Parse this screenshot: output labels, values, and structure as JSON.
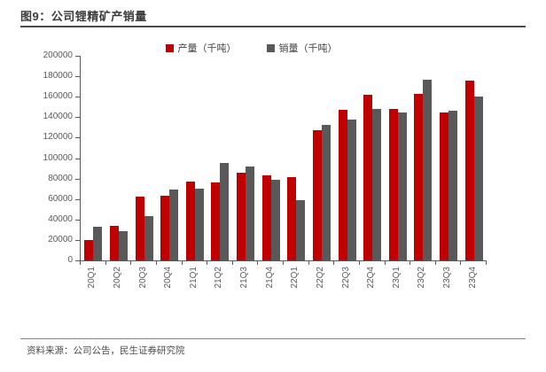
{
  "header": {
    "title": "图9：公司锂精矿产销量"
  },
  "chart_data": {
    "type": "bar",
    "title": "公司锂精矿产销量",
    "categories": [
      "20Q1",
      "20Q2",
      "20Q3",
      "20Q4",
      "21Q1",
      "21Q2",
      "21Q3",
      "21Q4",
      "22Q1",
      "22Q2",
      "22Q3",
      "22Q4",
      "23Q1",
      "23Q2",
      "23Q3",
      "23Q4"
    ],
    "series": [
      {
        "name": "产量（千吨）",
        "color": "#C00000",
        "values": [
          20000,
          34000,
          62500,
          63000,
          77000,
          76500,
          86000,
          83500,
          81500,
          127000,
          147000,
          162000,
          148500,
          162500,
          145000,
          176000
        ]
      },
      {
        "name": "销量（千吨）",
        "color": "#595959",
        "values": [
          33000,
          29000,
          43000,
          69500,
          70500,
          95000,
          91500,
          78500,
          58500,
          132500,
          138000,
          148500,
          145000,
          176500,
          146500,
          160000
        ]
      }
    ],
    "xlabel": "",
    "ylabel": "",
    "ylim": [
      0,
      200000
    ],
    "ytick_step": 20000,
    "grid": false,
    "legend_position": "top-center",
    "x_label_rotation": -90
  },
  "footer": {
    "source": "资料来源：公司公告，民生证券研究院"
  }
}
